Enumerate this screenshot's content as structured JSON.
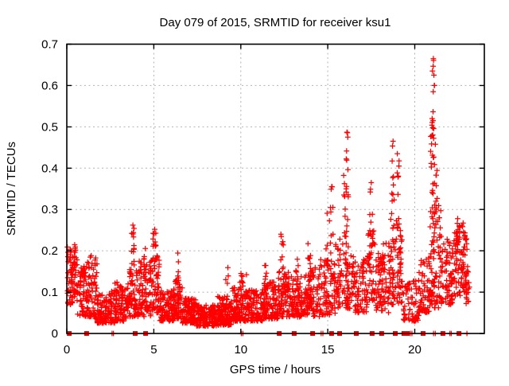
{
  "chart_data": {
    "type": "scatter",
    "title": "Day 079 of 2015, SRMTID for receiver ksu1",
    "xlabel": "GPS time / hours",
    "ylabel": "SRMTID / TECUs",
    "xlim": [
      0,
      24
    ],
    "ylim": [
      0,
      0.7
    ],
    "xticks": [
      0,
      5,
      10,
      15,
      20
    ],
    "xticklabels": [
      "0",
      "5",
      "10",
      "15",
      "20"
    ],
    "yticks": [
      0,
      0.1,
      0.2,
      0.3,
      0.4,
      0.5,
      0.6,
      0.7
    ],
    "yticklabels": [
      "0",
      "0.1",
      "0.2",
      "0.3",
      "0.4",
      "0.5",
      "0.6",
      "0.7"
    ],
    "grid": true,
    "legend": "none",
    "marker": {
      "shape": "plus",
      "color": "#ff0000",
      "size": 7
    },
    "zero_marker": {
      "shape": "filled-square",
      "color": "#ff0000",
      "size": 6
    },
    "colors": {
      "marker": "#ff0000",
      "grid": "#b3b3b3",
      "axis": "#000000",
      "background": "#ffffff",
      "text": "#000000"
    },
    "seed": 20150379,
    "bands_format": [
      "hour_start",
      "hour_end",
      "value_min",
      "value_max",
      "skew_toward_min",
      "count"
    ],
    "scatter_bands": [
      [
        0.02,
        0.6,
        0.07,
        0.215,
        1.0,
        85
      ],
      [
        0.6,
        1.15,
        0.04,
        0.165,
        1.3,
        65
      ],
      [
        1.15,
        1.75,
        0.035,
        0.19,
        1.5,
        70
      ],
      [
        1.75,
        2.75,
        0.025,
        0.105,
        1.5,
        115
      ],
      [
        2.75,
        3.45,
        0.03,
        0.125,
        1.4,
        85
      ],
      [
        3.45,
        4.15,
        0.04,
        0.155,
        1.4,
        85
      ],
      [
        4.15,
        4.85,
        0.04,
        0.175,
        1.4,
        80
      ],
      [
        4.85,
        5.35,
        0.05,
        0.19,
        1.2,
        55
      ],
      [
        5.35,
        6.15,
        0.03,
        0.105,
        1.5,
        95
      ],
      [
        6.15,
        6.65,
        0.035,
        0.13,
        1.4,
        65
      ],
      [
        6.65,
        7.45,
        0.025,
        0.085,
        1.5,
        115
      ],
      [
        7.45,
        8.65,
        0.018,
        0.07,
        1.5,
        155
      ],
      [
        8.65,
        9.45,
        0.02,
        0.09,
        1.4,
        125
      ],
      [
        9.45,
        10.25,
        0.03,
        0.115,
        1.4,
        105
      ],
      [
        10.25,
        11.25,
        0.03,
        0.105,
        1.5,
        115
      ],
      [
        11.25,
        12.15,
        0.035,
        0.125,
        1.4,
        105
      ],
      [
        12.15,
        12.75,
        0.04,
        0.15,
        1.3,
        70
      ],
      [
        12.75,
        13.65,
        0.04,
        0.14,
        1.4,
        95
      ],
      [
        13.65,
        14.55,
        0.04,
        0.16,
        1.4,
        95
      ],
      [
        14.55,
        15.45,
        0.045,
        0.18,
        1.4,
        85
      ],
      [
        15.45,
        16.5,
        0.06,
        0.23,
        1.3,
        105
      ],
      [
        16.5,
        17.3,
        0.05,
        0.18,
        1.4,
        75
      ],
      [
        17.3,
        17.75,
        0.08,
        0.25,
        1.2,
        45
      ],
      [
        17.75,
        18.55,
        0.05,
        0.22,
        1.4,
        75
      ],
      [
        18.55,
        19.3,
        0.07,
        0.28,
        1.3,
        85
      ],
      [
        19.3,
        20.25,
        0.03,
        0.13,
        1.5,
        65
      ],
      [
        20.25,
        20.85,
        0.05,
        0.19,
        1.4,
        60
      ],
      [
        20.85,
        21.5,
        0.06,
        0.31,
        1.2,
        85
      ],
      [
        21.5,
        22.2,
        0.07,
        0.24,
        1.3,
        75
      ],
      [
        22.2,
        23.05,
        0.09,
        0.27,
        1.2,
        90
      ],
      [
        22.9,
        23.15,
        0.07,
        0.15,
        1.3,
        18
      ]
    ],
    "columns_format": [
      "hour_start",
      "hour_end",
      "value_min",
      "value_max",
      "count"
    ],
    "scatter_columns": [
      [
        3.72,
        3.88,
        0.14,
        0.265,
        13
      ],
      [
        4.42,
        4.55,
        0.12,
        0.21,
        8
      ],
      [
        4.95,
        5.18,
        0.17,
        0.255,
        12
      ],
      [
        6.28,
        6.45,
        0.12,
        0.195,
        8
      ],
      [
        9.12,
        9.3,
        0.08,
        0.16,
        8
      ],
      [
        9.95,
        10.12,
        0.1,
        0.155,
        8
      ],
      [
        10.28,
        10.4,
        0.09,
        0.15,
        6
      ],
      [
        11.35,
        11.5,
        0.1,
        0.165,
        7
      ],
      [
        12.28,
        12.45,
        0.13,
        0.245,
        10
      ],
      [
        13.15,
        13.3,
        0.1,
        0.19,
        8
      ],
      [
        13.85,
        14.02,
        0.12,
        0.22,
        9
      ],
      [
        14.9,
        15.1,
        0.15,
        0.3,
        10
      ],
      [
        15.15,
        15.32,
        0.18,
        0.36,
        9
      ],
      [
        15.9,
        16.07,
        0.2,
        0.4,
        10
      ],
      [
        16.05,
        16.22,
        0.24,
        0.49,
        12
      ],
      [
        17.4,
        17.58,
        0.2,
        0.37,
        9
      ],
      [
        18.05,
        18.22,
        0.14,
        0.25,
        8
      ],
      [
        18.65,
        18.82,
        0.28,
        0.47,
        10
      ],
      [
        18.95,
        19.12,
        0.24,
        0.44,
        9
      ],
      [
        20.9,
        21.07,
        0.3,
        0.52,
        11
      ],
      [
        21.0,
        21.17,
        0.34,
        0.672,
        13
      ],
      [
        21.1,
        21.3,
        0.28,
        0.46,
        10
      ],
      [
        22.4,
        22.58,
        0.2,
        0.295,
        9
      ]
    ],
    "extra_points": [
      [
        21.07,
        0.665
      ],
      [
        21.02,
        0.635
      ],
      [
        21.1,
        0.625
      ],
      [
        21.06,
        0.585
      ],
      [
        21.12,
        0.6
      ],
      [
        21.0,
        0.52
      ],
      [
        21.05,
        0.515
      ],
      [
        16.1,
        0.487
      ],
      [
        16.15,
        0.475
      ],
      [
        18.75,
        0.465
      ],
      [
        19.0,
        0.435
      ],
      [
        15.25,
        0.355
      ],
      [
        17.5,
        0.365
      ],
      [
        3.8,
        0.262
      ],
      [
        5.05,
        0.252
      ]
    ],
    "zero_square_hours": [
      0.14,
      1.14,
      3.93,
      4.53,
      12.21,
      13.07,
      14.13,
      15.22,
      15.68,
      16.64,
      17.55,
      18.1,
      18.88,
      19.38,
      19.57,
      20.48,
      21.62,
      22.54
    ],
    "zero_plus_hours": [
      2.6,
      2.68,
      10.03,
      10.12,
      14.62,
      14.72,
      19.75,
      19.84,
      21.08,
      21.18,
      22.02,
      22.1,
      23.0
    ]
  }
}
